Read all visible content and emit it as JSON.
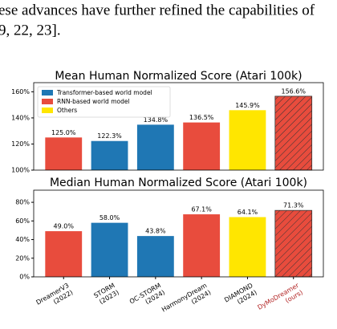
{
  "paper": {
    "lines": [
      "ese advances have further refined the capabilities of",
      "9, 22, 23]."
    ]
  },
  "chart_data": [
    {
      "type": "bar",
      "title": "Mean Human Normalized Score (Atari 100k)",
      "values": [
        125.0,
        122.3,
        134.8,
        136.5,
        145.9,
        156.6
      ],
      "value_labels": [
        "125.0%",
        "122.3%",
        "134.8%",
        "136.5%",
        "145.9%",
        "156.6%"
      ],
      "colors": [
        "#e84c3d",
        "#1f77b4",
        "#1f77b4",
        "#e84c3d",
        "#ffe600",
        "#e84c3d"
      ],
      "hatch": [
        false,
        false,
        false,
        false,
        false,
        true
      ],
      "ylim": [
        100,
        167
      ],
      "yticks": [
        {
          "value": 100,
          "label": "100%"
        },
        {
          "value": 120,
          "label": "120%"
        },
        {
          "value": 140,
          "label": "140%"
        },
        {
          "value": 160,
          "label": "160%"
        }
      ],
      "legend": {
        "loc": "upper left",
        "entries": [
          {
            "name": "Transformer-based world model",
            "color": "#1f77b4"
          },
          {
            "name": "RNN-based world model",
            "color": "#e84c3d"
          },
          {
            "name": "Others",
            "color": "#ffe600"
          }
        ]
      }
    },
    {
      "type": "bar",
      "title": "Median Human Normalized Score (Atari 100k)",
      "categories": [
        [
          "DreamerV3",
          "(2022)"
        ],
        [
          "STORM",
          "(2023)"
        ],
        [
          "OC-STORM",
          "(2024)"
        ],
        [
          "HarmonyDream",
          "(2024)"
        ],
        [
          "DIAMOND",
          "(2024)"
        ],
        [
          "DyMoDreamer",
          "(ours)"
        ]
      ],
      "category_colors": [
        "#000000",
        "#000000",
        "#000000",
        "#000000",
        "#000000",
        "#b22222"
      ],
      "values": [
        49.0,
        58.0,
        43.8,
        67.1,
        64.1,
        71.3
      ],
      "value_labels": [
        "49.0%",
        "58.0%",
        "43.8%",
        "67.1%",
        "64.1%",
        "71.3%"
      ],
      "colors": [
        "#e84c3d",
        "#1f77b4",
        "#1f77b4",
        "#e84c3d",
        "#ffe600",
        "#e84c3d"
      ],
      "hatch": [
        false,
        false,
        false,
        false,
        false,
        true
      ],
      "ylim": [
        0,
        93
      ],
      "yticks": [
        {
          "value": 0,
          "label": "0%"
        },
        {
          "value": 20,
          "label": "20%"
        },
        {
          "value": 40,
          "label": "40%"
        },
        {
          "value": 60,
          "label": "60%"
        },
        {
          "value": 80,
          "label": "80%"
        }
      ]
    }
  ]
}
